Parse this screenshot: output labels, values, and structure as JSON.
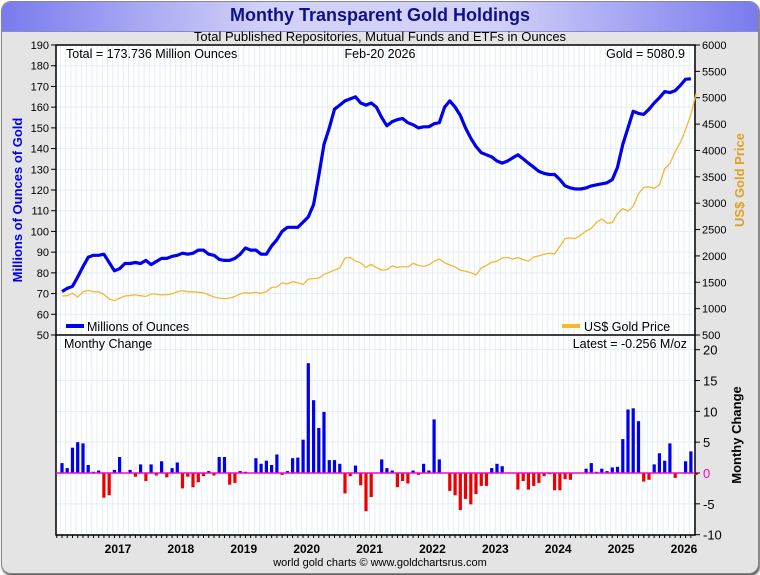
{
  "chart_data": [
    {
      "type": "line",
      "title": "Monthy Transparent Gold Holdings",
      "subtitle": "Total Published Repositories, Mutual Funds and ETFs in Ounces",
      "annotations": {
        "total": "Total = 173.736 Million Ounces",
        "date": "Feb-20  2026",
        "gold": "Gold = 5080.9"
      },
      "ylabel": "Millions of Ounces of Gold",
      "y2label": "US$ Gold Price",
      "ylim": [
        50,
        190
      ],
      "y2lim": [
        500,
        6000
      ],
      "yticks": [
        "190",
        "180",
        "170",
        "160",
        "150",
        "140",
        "130",
        "120",
        "110",
        "100",
        "90",
        "80",
        "70",
        "60",
        "50"
      ],
      "y2ticks": [
        "6000",
        "5500",
        "5000",
        "4500",
        "4000",
        "3500",
        "3000",
        "2500",
        "2000",
        "1500",
        "1000",
        "500"
      ],
      "grid": true,
      "legend": [
        {
          "name": "Millions of Ounces",
          "color": "#0000ee",
          "position": "bottom-left"
        },
        {
          "name": "US$ Gold Price",
          "color": "#f5b82e",
          "position": "bottom-right"
        }
      ],
      "x_start": "2016-02",
      "series": [
        {
          "name": "Millions of Ounces",
          "axis": "left",
          "color": "#0000ee",
          "values": [
            71,
            72.5,
            73.5,
            78,
            83,
            87.5,
            88.5,
            88.5,
            89,
            85,
            81,
            82,
            84.5,
            84.5,
            85,
            84.5,
            86,
            84,
            85.5,
            87,
            87,
            88,
            88.5,
            89.5,
            89,
            89.5,
            91,
            91,
            89,
            88.5,
            86.5,
            86,
            86,
            87,
            89,
            92,
            91,
            91,
            89,
            89,
            93,
            96,
            100,
            102,
            102,
            102,
            104.5,
            107,
            113,
            127,
            142,
            150,
            159,
            161,
            163,
            164,
            165,
            162,
            161,
            162,
            160,
            155,
            151,
            153,
            154,
            154.5,
            152.5,
            151.5,
            150,
            150.5,
            150.5,
            152,
            152.5,
            160,
            163,
            160,
            156,
            150,
            145,
            141,
            138,
            137,
            136,
            134,
            133,
            134,
            135.5,
            137,
            135,
            133,
            131,
            129,
            128,
            127.5,
            127.5,
            125,
            122,
            121,
            120.5,
            120.5,
            121,
            122,
            122.5,
            123,
            123.5,
            125,
            131,
            142,
            150,
            158,
            157,
            156.5,
            159,
            162,
            164.5,
            167.5,
            167,
            168,
            170.5,
            173.5,
            173.7
          ]
        },
        {
          "name": "US$ Gold Price",
          "axis": "right",
          "color": "#f5b82e",
          "values": [
            1240,
            1245,
            1290,
            1220,
            1320,
            1345,
            1320,
            1320,
            1270,
            1180,
            1150,
            1200,
            1240,
            1250,
            1260,
            1245,
            1230,
            1280,
            1270,
            1260,
            1265,
            1280,
            1320,
            1340,
            1320,
            1320,
            1310,
            1300,
            1260,
            1220,
            1200,
            1190,
            1200,
            1230,
            1280,
            1300,
            1295,
            1310,
            1290,
            1320,
            1400,
            1410,
            1490,
            1470,
            1510,
            1490,
            1460,
            1560,
            1570,
            1580,
            1650,
            1690,
            1730,
            1770,
            1960,
            1970,
            1900,
            1870,
            1780,
            1840,
            1780,
            1730,
            1740,
            1810,
            1780,
            1800,
            1790,
            1860,
            1820,
            1800,
            1830,
            1900,
            1940,
            1870,
            1830,
            1790,
            1730,
            1710,
            1680,
            1640,
            1770,
            1820,
            1880,
            1900,
            1960,
            1970,
            1940,
            1970,
            1930,
            1900,
            1980,
            2000,
            2030,
            2050,
            2040,
            2180,
            2330,
            2340,
            2330,
            2400,
            2470,
            2520,
            2640,
            2700,
            2620,
            2630,
            2800,
            2900,
            2850,
            2940,
            3180,
            3300,
            3310,
            3280,
            3350,
            3650,
            3750,
            3980,
            4150,
            4400,
            4680,
            5080
          ]
        }
      ]
    },
    {
      "type": "bar",
      "title": "Monthy Change",
      "annotation": "Latest = -0.256 M/oz",
      "ylabel": "Monthy Change",
      "ylim": [
        -10,
        20
      ],
      "yticks": [
        "20",
        "15",
        "10",
        "5",
        "0",
        "-5",
        "-10"
      ],
      "xticks": [
        "2017",
        "2018",
        "2019",
        "2020",
        "2021",
        "2022",
        "2023",
        "2024",
        "2025",
        "2026"
      ],
      "x_start": "2016-02",
      "colors": {
        "positive": "#0000ee",
        "negative": "#ee0000",
        "zero_line": "#ff00cc"
      },
      "values": [
        1.6,
        0.8,
        4.1,
        5,
        4.8,
        1.3,
        0.2,
        0.4,
        -4,
        -3.6,
        0.5,
        2.6,
        0,
        0.5,
        -0.6,
        1.4,
        -1.3,
        1.4,
        -0.4,
        1.9,
        -0.7,
        0.8,
        1.7,
        -2.5,
        -0.6,
        -2.3,
        -1.5,
        -0.5,
        0.3,
        -0.4,
        2.6,
        2.6,
        -1.9,
        -1.6,
        0.3,
        0.2,
        0,
        2.4,
        1.5,
        2,
        1.3,
        3,
        -0.3,
        0.3,
        2.4,
        2.5,
        5.4,
        17.8,
        11.8,
        7.3,
        9.9,
        2.1,
        2.1,
        1.5,
        -3.3,
        -0.5,
        1.2,
        -2,
        -6.2,
        -3.9,
        0,
        2.2,
        0.8,
        0.4,
        -2.3,
        -1.3,
        -1.7,
        0.4,
        -0.3,
        1.5,
        0.4,
        8.7,
        2.2,
        0,
        -2.9,
        -3.6,
        -6,
        -4.2,
        -5.1,
        -3.4,
        -2.1,
        -2.1,
        0.8,
        1.5,
        1.1,
        0,
        0,
        -2.7,
        -1.3,
        -2.7,
        -2.1,
        -1.6,
        -0.5,
        -0.2,
        -2.8,
        -2.8,
        -1,
        -1.1,
        0,
        0,
        0.7,
        1.6,
        0.2,
        0.7,
        0.3,
        0.9,
        1,
        5.5,
        10.3,
        10.5,
        8.4,
        -1.4,
        -1.1,
        1.4,
        3.2,
        2,
        4.8,
        -0.8,
        0,
        1.9,
        3.5,
        -0.3
      ]
    }
  ],
  "footer": "world gold charts © www.goldchartsrus.com"
}
